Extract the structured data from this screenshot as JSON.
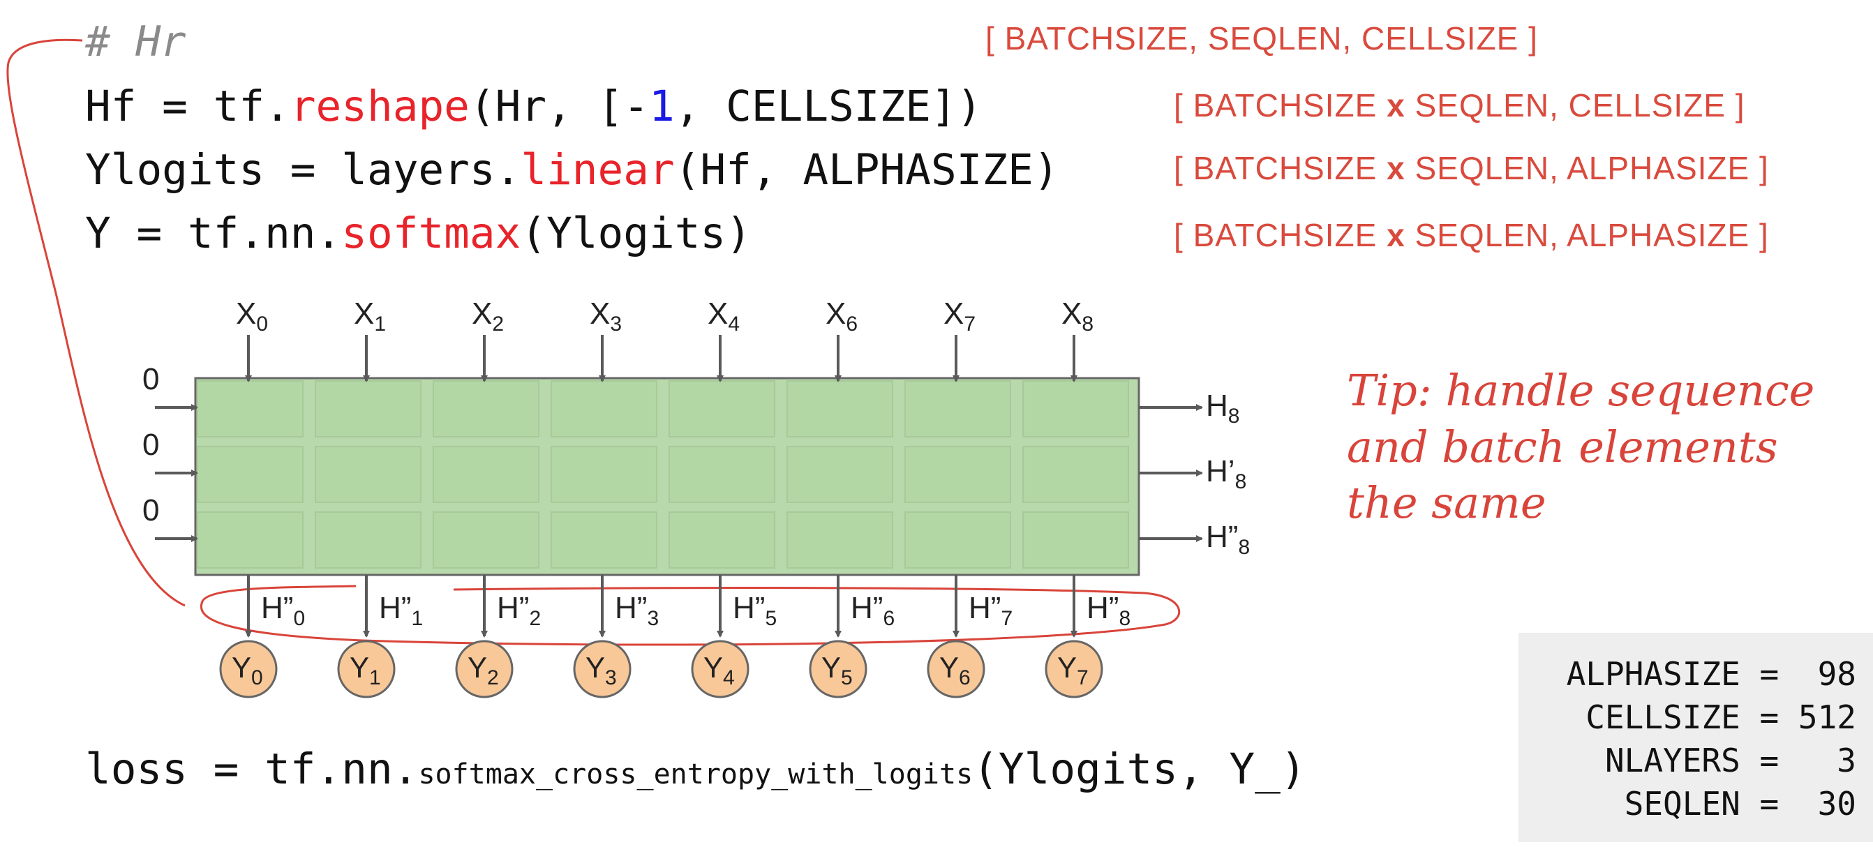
{
  "code": {
    "comment": "# Hr",
    "line1": {
      "pre": "Hf = tf.",
      "fn": "reshape",
      "mid": "(Hr, [-",
      "num": "1",
      "post": ", CELLSIZE])"
    },
    "line2": {
      "pre": "Ylogits = layers.",
      "fn": "linear",
      "post": "(Hf, ALPHASIZE)"
    },
    "line3": {
      "pre": "Y = tf.nn.",
      "fn": "softmax",
      "post": "(Ylogits)"
    },
    "loss": {
      "pre": "loss = tf.nn.",
      "fn": "softmax_cross_entropy_with_logits",
      "post": "(Ylogits, Y_)"
    }
  },
  "shapes": {
    "s0": {
      "open": "[ ",
      "a": "BATCHSIZE, SEQLEN, CELLSIZE",
      "close": " ]"
    },
    "s1": {
      "open": "[ ",
      "a": "BATCHSIZE ",
      "x": "x",
      "b": " SEQLEN, CELLSIZE",
      "close": " ]"
    },
    "s2": {
      "open": "[ ",
      "a": "BATCHSIZE ",
      "x": "x",
      "b": " SEQLEN, ALPHASIZE",
      "close": " ]"
    },
    "s3": {
      "open": "[ ",
      "a": "BATCHSIZE ",
      "x": "x",
      "b": " SEQLEN, ALPHASIZE",
      "close": " ]"
    }
  },
  "tip": {
    "l1": "Tip: handle sequence",
    "l2": "and batch elements",
    "l3": "the same"
  },
  "inputs": [
    {
      "name": "X",
      "sub": "0"
    },
    {
      "name": "X",
      "sub": "1"
    },
    {
      "name": "X",
      "sub": "2"
    },
    {
      "name": "X",
      "sub": "3"
    },
    {
      "name": "X",
      "sub": "4"
    },
    {
      "name": "X",
      "sub": "6"
    },
    {
      "name": "X",
      "sub": "7"
    },
    {
      "name": "X",
      "sub": "8"
    }
  ],
  "initial_states": [
    "0",
    "0",
    "0"
  ],
  "right_states": [
    {
      "name": "H",
      "sub": "8"
    },
    {
      "name": "H’",
      "sub": "8"
    },
    {
      "name": "H”",
      "sub": "8"
    }
  ],
  "outputs_h": [
    {
      "name": "H”",
      "sub": "0"
    },
    {
      "name": "H”",
      "sub": "1"
    },
    {
      "name": "H”",
      "sub": "2"
    },
    {
      "name": "H”",
      "sub": "3"
    },
    {
      "name": "H”",
      "sub": "5"
    },
    {
      "name": "H”",
      "sub": "6"
    },
    {
      "name": "H”",
      "sub": "7"
    },
    {
      "name": "H”",
      "sub": "8"
    }
  ],
  "outputs_y": [
    {
      "name": "Y",
      "sub": "0"
    },
    {
      "name": "Y",
      "sub": "1"
    },
    {
      "name": "Y",
      "sub": "2"
    },
    {
      "name": "Y",
      "sub": "3"
    },
    {
      "name": "Y",
      "sub": "4"
    },
    {
      "name": "Y",
      "sub": "5"
    },
    {
      "name": "Y",
      "sub": "6"
    },
    {
      "name": "Y",
      "sub": "7"
    }
  ],
  "params": [
    {
      "name": "ALPHASIZE",
      "eq": " = ",
      "val": " 98"
    },
    {
      "name": "CELLSIZE",
      "eq": " = ",
      "val": "512"
    },
    {
      "name": "NLAYERS",
      "eq": " = ",
      "val": "  3"
    },
    {
      "name": "SEQLEN",
      "eq": " = ",
      "val": " 30"
    }
  ],
  "colors": {
    "grid_outer": "#b8d9ab",
    "cell": "#b3d6a5",
    "cell_border": "#a8c99a",
    "outer_border": "#666666",
    "arrow": "#5a5a5a",
    "red": "#d9443a",
    "circle_fill": "#f8c898",
    "circle_stroke": "#666666"
  }
}
